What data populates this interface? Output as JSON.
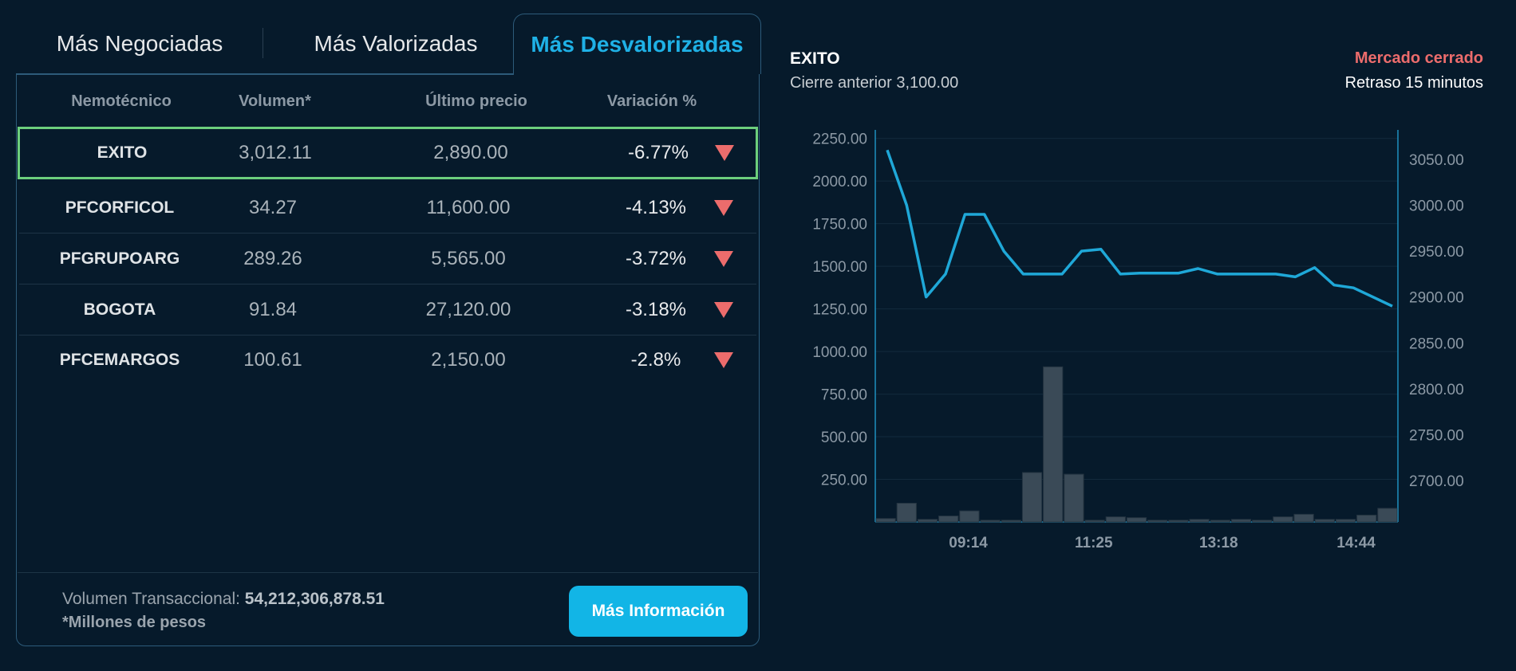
{
  "tabs": [
    {
      "label": "Más Negociadas",
      "active": false
    },
    {
      "label": "Más Valorizadas",
      "active": false
    },
    {
      "label": "Más Desvalorizadas",
      "active": true
    }
  ],
  "table": {
    "headers": [
      "Nemotécnico",
      "Volumen*",
      "Último precio",
      "Variación %"
    ],
    "rows": [
      {
        "symbol": "EXITO",
        "volume": "3,012.11",
        "price": "2,890.00",
        "change": "-6.77%",
        "selected": true
      },
      {
        "symbol": "PFCORFICOL",
        "volume": "34.27",
        "price": "11,600.00",
        "change": "-4.13%"
      },
      {
        "symbol": "PFGRUPOARG",
        "volume": "289.26",
        "price": "5,565.00",
        "change": "-3.72%"
      },
      {
        "symbol": "BOGOTA",
        "volume": "91.84",
        "price": "27,120.00",
        "change": "-3.18%"
      },
      {
        "symbol": "PFCEMARGOS",
        "volume": "100.61",
        "price": "2,150.00",
        "change": "-2.8%"
      }
    ]
  },
  "footer": {
    "volume_label": "Volumen Transaccional: ",
    "volume_value": "54,212,306,878.51",
    "note": "*Millones de pesos",
    "button": "Más Información"
  },
  "detail": {
    "symbol": "EXITO",
    "prev_close": "Cierre anterior 3,100.00",
    "market_status": "Mercado cerrado",
    "delay": "Retraso 15 minutos"
  },
  "colors": {
    "background": "#061a2b",
    "accent": "#1fb1e6",
    "down": "#ec6c6c",
    "selected_border": "#6ccf7d",
    "price_line": "#1fa8d8",
    "volume_bar": "#3a4a57"
  },
  "chart_data": {
    "type": "line",
    "x_ticks": [
      "09:14",
      "11:25",
      "13:18",
      "14:44"
    ],
    "left_axis": {
      "ticks": [
        "250.00",
        "500.00",
        "750.00",
        "1000.00",
        "1250.00",
        "1500.00",
        "1750.00",
        "2000.00",
        "2250.00"
      ],
      "range": [
        0,
        2300
      ]
    },
    "right_axis": {
      "ticks": [
        "2700.00",
        "2750.00",
        "2800.00",
        "2850.00",
        "2900.00",
        "2950.00",
        "3000.00",
        "3050.00"
      ],
      "range": [
        2655,
        3082
      ]
    },
    "price_series": [
      3060,
      3000,
      2900,
      2925,
      2990,
      2990,
      2950,
      2925,
      2925,
      2925,
      2950,
      2952,
      2925,
      2926,
      2926,
      2926,
      2931,
      2925,
      2925,
      2925,
      2925,
      2922,
      2932,
      2913,
      2910,
      2900,
      2890
    ],
    "volume_series": [
      20,
      110,
      15,
      35,
      65,
      10,
      10,
      290,
      910,
      280,
      10,
      30,
      25,
      10,
      10,
      15,
      10,
      15,
      10,
      30,
      45,
      15,
      15,
      40,
      80
    ]
  }
}
